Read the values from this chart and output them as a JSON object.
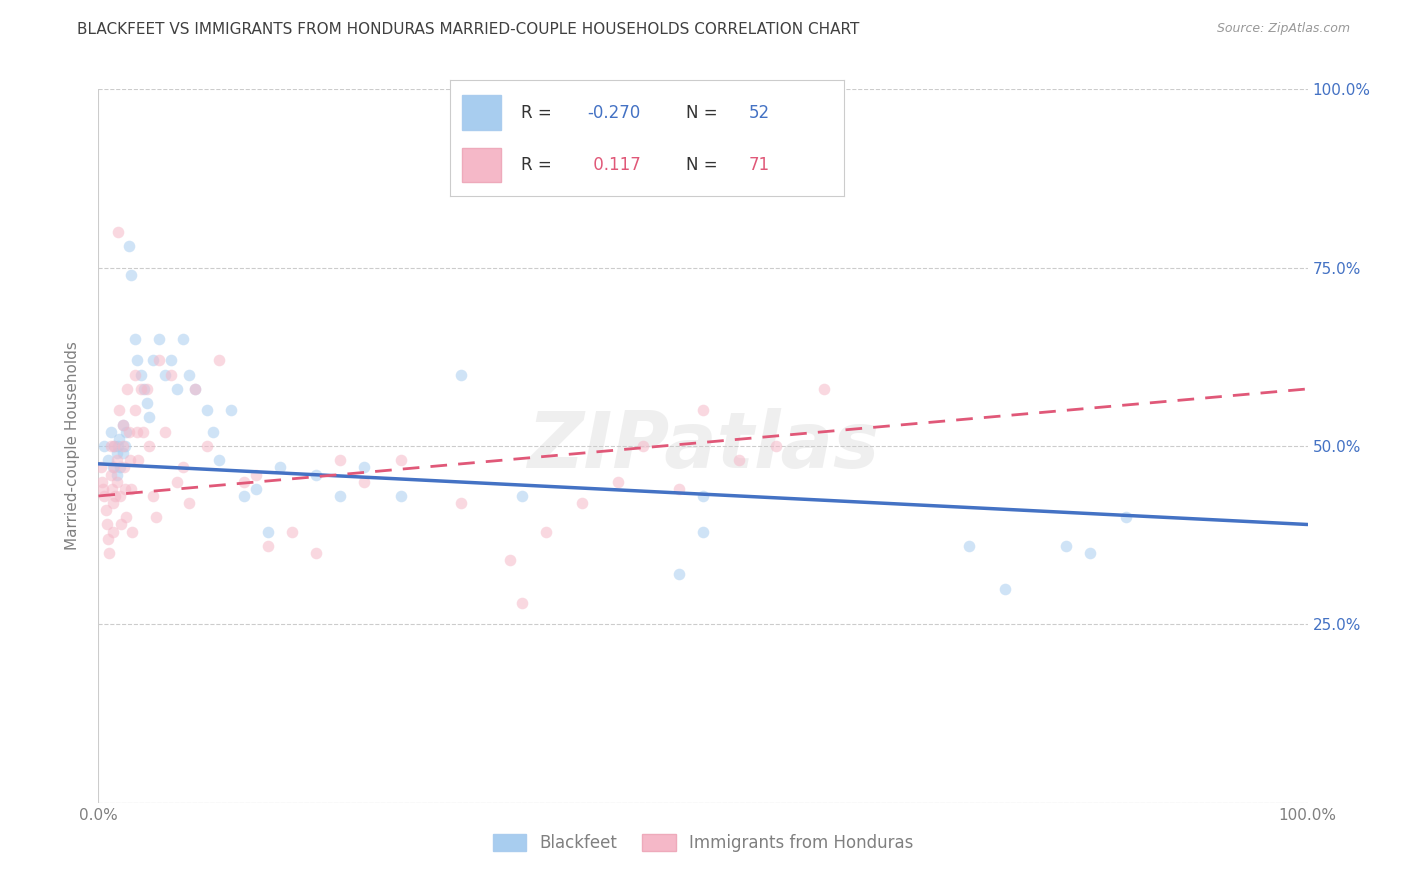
{
  "title": "BLACKFEET VS IMMIGRANTS FROM HONDURAS MARRIED-COUPLE HOUSEHOLDS CORRELATION CHART",
  "source": "Source: ZipAtlas.com",
  "ylabel": "Married-couple Households",
  "xlim": [
    0,
    1.0
  ],
  "ylim": [
    0,
    1.0
  ],
  "legend_r1": "R = -0.270",
  "legend_n1": "N = 52",
  "legend_r2": "R =  0.117",
  "legend_n2": "N = 71",
  "blue_color": "#A8CDEF",
  "pink_color": "#F5B8C8",
  "blue_line_color": "#4472C4",
  "pink_line_color": "#E05878",
  "title_color": "#404040",
  "axis_color": "#808080",
  "grid_color": "#CCCCCC",
  "right_label_color": "#4472C4",
  "blue_scatter_x": [
    0.005,
    0.008,
    0.01,
    0.012,
    0.013,
    0.015,
    0.015,
    0.016,
    0.017,
    0.018,
    0.02,
    0.02,
    0.022,
    0.023,
    0.025,
    0.027,
    0.03,
    0.032,
    0.035,
    0.038,
    0.04,
    0.042,
    0.045,
    0.05,
    0.055,
    0.06,
    0.065,
    0.07,
    0.075,
    0.08,
    0.09,
    0.095,
    0.1,
    0.11,
    0.12,
    0.13,
    0.14,
    0.15,
    0.18,
    0.2,
    0.22,
    0.25,
    0.3,
    0.35,
    0.48,
    0.5,
    0.5,
    0.72,
    0.75,
    0.8,
    0.82,
    0.85
  ],
  "blue_scatter_y": [
    0.5,
    0.48,
    0.52,
    0.47,
    0.5,
    0.49,
    0.46,
    0.5,
    0.51,
    0.47,
    0.53,
    0.49,
    0.5,
    0.52,
    0.78,
    0.74,
    0.65,
    0.62,
    0.6,
    0.58,
    0.56,
    0.54,
    0.62,
    0.65,
    0.6,
    0.62,
    0.58,
    0.65,
    0.6,
    0.58,
    0.55,
    0.52,
    0.48,
    0.55,
    0.43,
    0.44,
    0.38,
    0.47,
    0.46,
    0.43,
    0.47,
    0.43,
    0.6,
    0.43,
    0.32,
    0.38,
    0.43,
    0.36,
    0.3,
    0.36,
    0.35,
    0.4
  ],
  "pink_scatter_x": [
    0.002,
    0.003,
    0.004,
    0.005,
    0.006,
    0.007,
    0.008,
    0.009,
    0.01,
    0.01,
    0.011,
    0.012,
    0.012,
    0.013,
    0.013,
    0.014,
    0.015,
    0.015,
    0.016,
    0.017,
    0.018,
    0.019,
    0.02,
    0.02,
    0.021,
    0.022,
    0.023,
    0.024,
    0.025,
    0.026,
    0.027,
    0.028,
    0.03,
    0.03,
    0.032,
    0.033,
    0.035,
    0.037,
    0.04,
    0.042,
    0.045,
    0.048,
    0.05,
    0.055,
    0.06,
    0.065,
    0.07,
    0.075,
    0.08,
    0.09,
    0.1,
    0.12,
    0.13,
    0.14,
    0.16,
    0.18,
    0.2,
    0.22,
    0.25,
    0.3,
    0.34,
    0.35,
    0.37,
    0.4,
    0.43,
    0.45,
    0.48,
    0.5,
    0.53,
    0.56,
    0.6
  ],
  "pink_scatter_y": [
    0.47,
    0.45,
    0.44,
    0.43,
    0.41,
    0.39,
    0.37,
    0.35,
    0.5,
    0.46,
    0.44,
    0.42,
    0.38,
    0.5,
    0.47,
    0.43,
    0.48,
    0.45,
    0.8,
    0.55,
    0.43,
    0.39,
    0.53,
    0.5,
    0.47,
    0.44,
    0.4,
    0.58,
    0.52,
    0.48,
    0.44,
    0.38,
    0.6,
    0.55,
    0.52,
    0.48,
    0.58,
    0.52,
    0.58,
    0.5,
    0.43,
    0.4,
    0.62,
    0.52,
    0.6,
    0.45,
    0.47,
    0.42,
    0.58,
    0.5,
    0.62,
    0.45,
    0.46,
    0.36,
    0.38,
    0.35,
    0.48,
    0.45,
    0.48,
    0.42,
    0.34,
    0.28,
    0.38,
    0.42,
    0.45,
    0.5,
    0.44,
    0.55,
    0.48,
    0.5,
    0.58
  ],
  "blue_line_x": [
    0.0,
    1.0
  ],
  "blue_line_y": [
    0.475,
    0.39
  ],
  "pink_line_x": [
    0.0,
    1.0
  ],
  "pink_line_y": [
    0.43,
    0.58
  ],
  "marker_size": 70,
  "alpha": 0.55
}
